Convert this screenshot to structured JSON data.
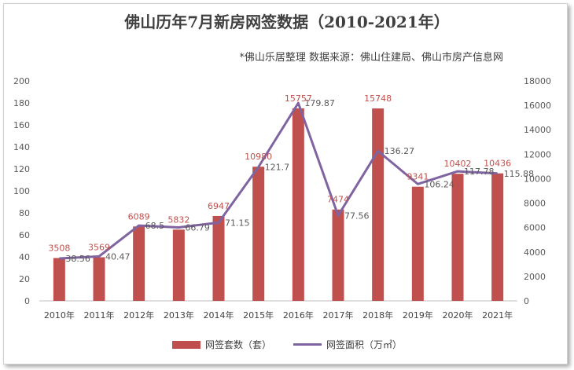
{
  "chart_data": {
    "type": "bar",
    "title": "佛山历年7月新房网签数据（2010-2021年）",
    "subtitle": "*佛山乐居整理 数据来源：佛山住建局、佛山市房产信息网",
    "categories": [
      "2010年",
      "2011年",
      "2012年",
      "2013年",
      "2014年",
      "2015年",
      "2016年",
      "2017年",
      "2018年",
      "2019年",
      "2020年",
      "2021年"
    ],
    "series": [
      {
        "name": "网签套数（套）",
        "type": "bar",
        "axis": "right",
        "color": "#c0504d",
        "values": [
          3508,
          3569,
          6089,
          5832,
          6947,
          10980,
          15757,
          7474,
          15748,
          9341,
          10402,
          10436
        ]
      },
      {
        "name": "网签面积（万㎡）",
        "type": "line",
        "axis": "left",
        "color": "#8064a2",
        "values": [
          38.56,
          40.47,
          68.5,
          66.79,
          71.15,
          121.7,
          179.87,
          77.56,
          136.27,
          106.24,
          117.78,
          115.88
        ]
      }
    ],
    "y_left": {
      "min": 0,
      "max": 200,
      "step": 20
    },
    "y_right": {
      "min": 0,
      "max": 18000,
      "step": 2000
    },
    "legend_position": "bottom",
    "grid": false
  }
}
